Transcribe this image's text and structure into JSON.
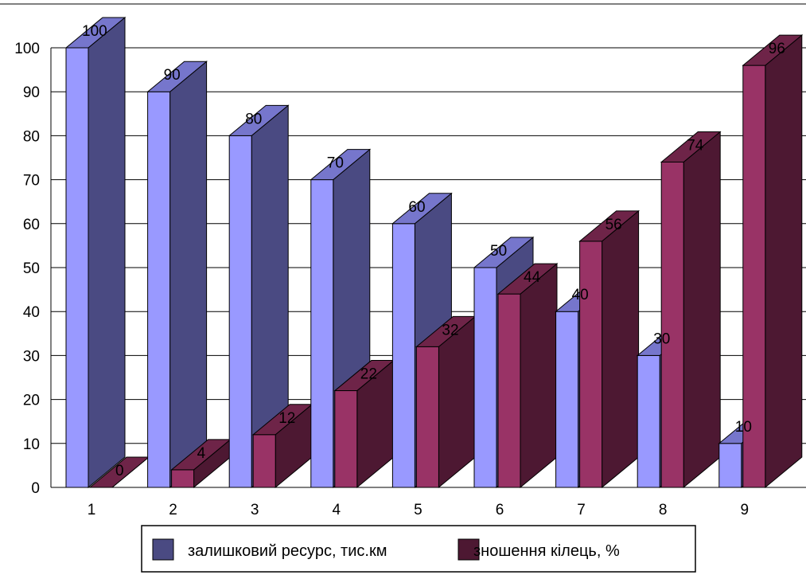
{
  "chart_data": {
    "type": "bar",
    "categories": [
      "1",
      "2",
      "3",
      "4",
      "5",
      "6",
      "7",
      "8",
      "9"
    ],
    "series": [
      {
        "name": "залишковий ресурс, тис.км",
        "values": [
          100,
          90,
          80,
          70,
          60,
          50,
          40,
          30,
          10
        ],
        "colors": {
          "front": "#9999ff",
          "top": "#7676cc",
          "side": "#4a4a82"
        }
      },
      {
        "name": "зношення кілець, %",
        "values": [
          0,
          4,
          12,
          22,
          32,
          44,
          56,
          74,
          96
        ],
        "colors": {
          "front": "#993366",
          "top": "#6e2448",
          "side": "#4d1832"
        }
      }
    ],
    "yticks": [
      0,
      10,
      20,
      30,
      40,
      50,
      60,
      70,
      80,
      90,
      100
    ],
    "ylim": [
      0,
      100
    ],
    "grid": true,
    "legend": "bottom",
    "style": "3d-clustered"
  }
}
